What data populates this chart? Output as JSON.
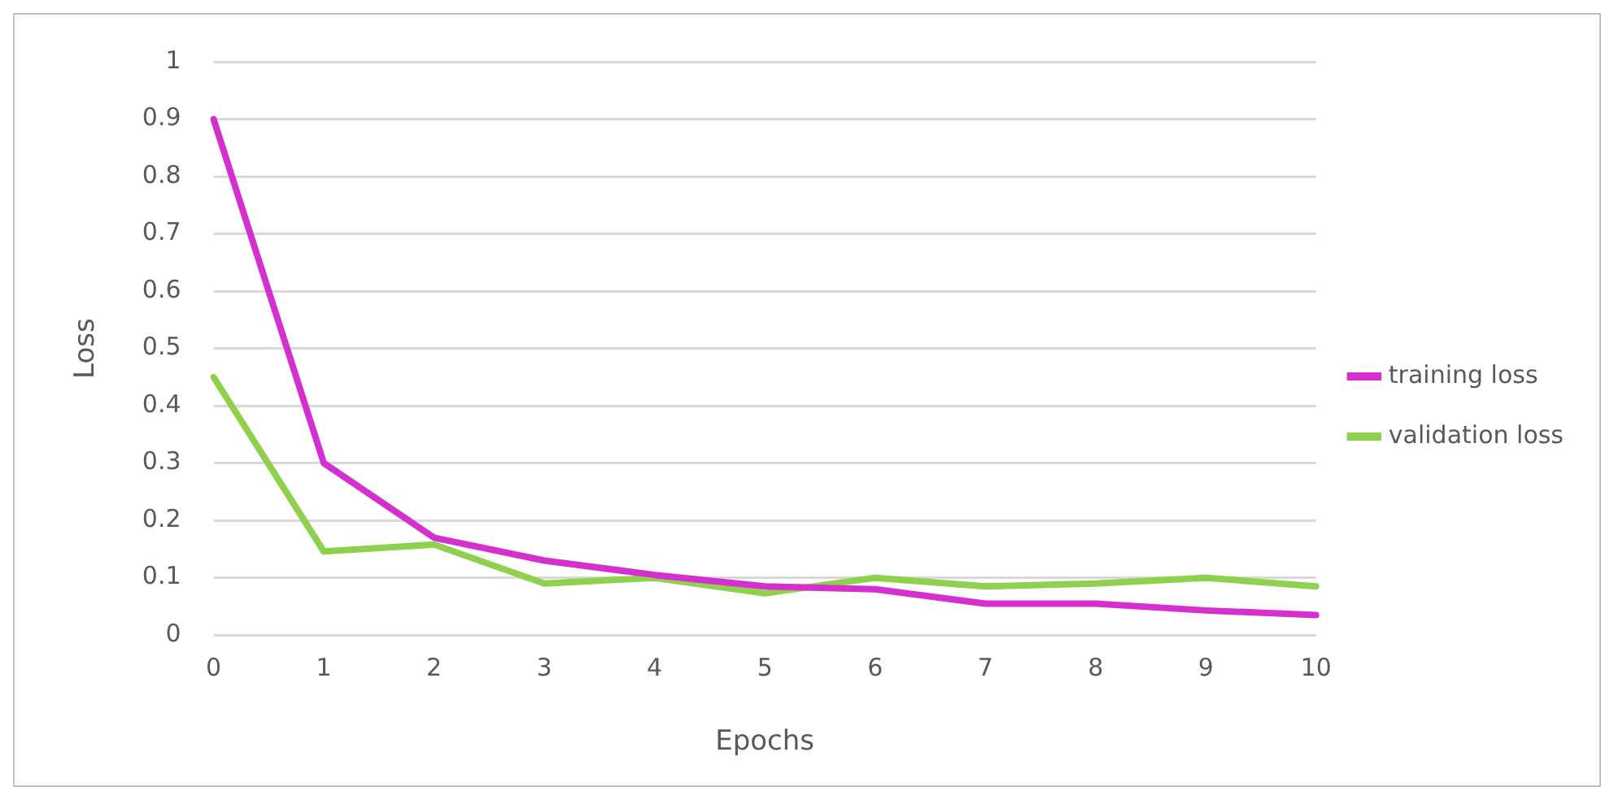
{
  "chart_data": {
    "type": "line",
    "xlabel": "Epochs",
    "ylabel": "Loss",
    "categories": [
      "0",
      "1",
      "2",
      "3",
      "4",
      "5",
      "6",
      "7",
      "8",
      "9",
      "10"
    ],
    "series": [
      {
        "name": "training loss",
        "color": "#d62fd0",
        "values": [
          0.9,
          0.3,
          0.17,
          0.13,
          0.105,
          0.085,
          0.08,
          0.055,
          0.055,
          0.043,
          0.035
        ]
      },
      {
        "name": "validation loss",
        "color": "#8fd14f",
        "values": [
          0.45,
          0.146,
          0.158,
          0.09,
          0.1,
          0.073,
          0.1,
          0.085,
          0.09,
          0.1,
          0.085
        ]
      }
    ],
    "ylim": [
      0,
      1
    ],
    "yticks": [
      0,
      0.1,
      0.2,
      0.3,
      0.4,
      0.5,
      0.6,
      0.7,
      0.8,
      0.9,
      1
    ],
    "grid": "y",
    "legend": "right",
    "marker": "none",
    "line_style": "solid"
  }
}
